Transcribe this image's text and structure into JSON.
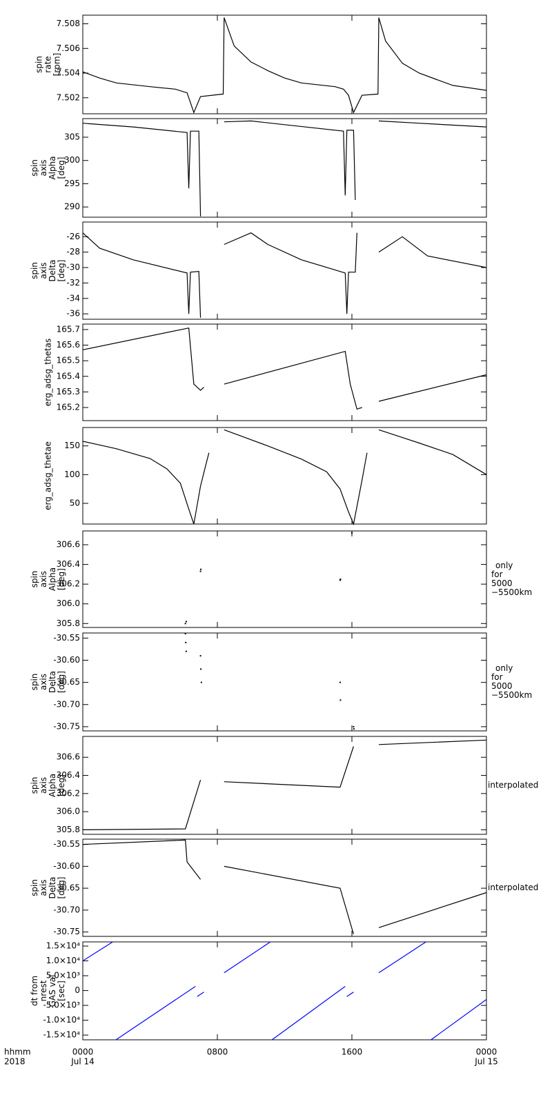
{
  "chart_data": [
    {
      "type": "line",
      "ylabel": [
        "spin",
        "rate",
        "[rpm]"
      ],
      "ylim": [
        7.5007,
        7.5087
      ],
      "yticks": [
        7.502,
        7.504,
        7.506,
        7.508
      ],
      "color": "#000000",
      "x": [
        0,
        1,
        2,
        4,
        5.5,
        6.2,
        6.6,
        7.0,
        8.35,
        8.4,
        9,
        10,
        11,
        12,
        13,
        15,
        15.5,
        15.8,
        16.1,
        16.6,
        17.55,
        17.6,
        18,
        19,
        20,
        21,
        22,
        24
      ],
      "values": [
        7.5041,
        7.5036,
        7.5032,
        7.5029,
        7.5027,
        7.5024,
        7.5008,
        7.5021,
        7.5023,
        7.5085,
        7.5062,
        7.5049,
        7.5042,
        7.5036,
        7.5032,
        7.5029,
        7.5027,
        7.5022,
        7.5008,
        7.5022,
        7.5023,
        7.5085,
        7.5066,
        7.5048,
        7.504,
        7.5035,
        7.503,
        7.5026
      ]
    },
    {
      "type": "line",
      "ylabel": [
        "spin",
        "axis",
        "Alpha",
        "[deg]"
      ],
      "ylim": [
        287.8,
        309
      ],
      "yticks": [
        290,
        295,
        300,
        305
      ],
      "color": "#000000",
      "x": [
        0,
        3,
        6.2,
        6.3,
        6.4,
        6.9,
        7.0,
        7.5,
        8.4,
        10,
        12,
        15.5,
        15.6,
        15.7,
        16.1,
        16.2,
        16.5,
        17.6,
        20,
        24
      ],
      "values": [
        308,
        307.2,
        306,
        294,
        306.3,
        306.3,
        288,
        null,
        308.3,
        308.5,
        307.7,
        306.3,
        292.5,
        306.5,
        306.5,
        291.5,
        null,
        308.5,
        308,
        307.2
      ]
    },
    {
      "type": "line",
      "ylabel": [
        "spin",
        "axis",
        "Delta",
        "[deg]"
      ],
      "ylim": [
        -36.7,
        -24.1
      ],
      "yticks": [
        -36,
        -34,
        -32,
        -30,
        -28,
        -26
      ],
      "color": "#000000",
      "x": [
        0,
        1,
        3,
        6.2,
        6.3,
        6.4,
        6.9,
        7.0,
        7.5,
        8.4,
        10,
        11,
        13,
        15.6,
        15.7,
        15.8,
        16.2,
        16.3,
        16.8,
        17.6,
        19,
        20.5,
        24
      ],
      "values": [
        -25.5,
        -27.5,
        -29,
        -30.7,
        -36,
        -30.6,
        -30.5,
        -36.5,
        null,
        -27,
        -25.5,
        -27,
        -29,
        -30.7,
        -36,
        -30.6,
        -30.6,
        -25.5,
        null,
        -28,
        -26,
        -28.5,
        -30
      ]
    },
    {
      "type": "line",
      "ylabel": [
        "erg_adsg_thetas"
      ],
      "ylim": [
        165.116,
        165.735
      ],
      "yticks": [
        165.2,
        165.3,
        165.4,
        165.5,
        165.6,
        165.7
      ],
      "color": "#000000",
      "x": [
        0,
        6.3,
        6.6,
        7.0,
        7.2,
        7.8,
        8.4,
        15.6,
        15.9,
        16.3,
        16.6,
        17.0,
        17.6,
        24
      ],
      "values": [
        165.57,
        165.71,
        165.35,
        165.31,
        165.33,
        null,
        165.35,
        165.56,
        165.35,
        165.19,
        165.2,
        null,
        165.24,
        165.41
      ]
    },
    {
      "type": "line",
      "ylabel": [
        "erg_adsg_thetae"
      ],
      "ylim": [
        14,
        182
      ],
      "yticks": [
        50,
        100,
        150
      ],
      "color": "#000000",
      "x": [
        0,
        2,
        4,
        5,
        5.8,
        6.3,
        6.6,
        7.0,
        7.3,
        7.5,
        8.0,
        8.4,
        11,
        13,
        14.5,
        15.3,
        15.8,
        16.1,
        16.6,
        16.9,
        17.2,
        17.6,
        20,
        22,
        24
      ],
      "values": [
        158,
        145,
        128,
        110,
        85,
        40,
        14,
        80,
        115,
        138,
        null,
        178,
        150,
        127,
        105,
        75,
        35,
        14,
        90,
        138,
        null,
        178,
        155,
        135,
        100
      ]
    },
    {
      "type": "scatter",
      "ylabel": [
        "spin",
        "axis",
        "Alpha",
        "[deg]"
      ],
      "note": [
        "only",
        "for",
        "5000",
        "−5500km"
      ],
      "ylim": [
        305.76,
        306.74
      ],
      "yticks": [
        {
          "value": 305.8,
          "label": "305.8"
        },
        {
          "value": 306.0,
          "label": "306.0"
        },
        {
          "value": 306.2,
          "label": "306.2"
        },
        {
          "value": 306.4,
          "label": "306.4"
        },
        {
          "value": 306.6,
          "label": "306.6"
        }
      ],
      "color": "#000000",
      "x": [
        6.1,
        6.15,
        7.0,
        7.02,
        15.3,
        15.32,
        16.0
      ],
      "values": [
        305.8,
        305.82,
        306.33,
        306.35,
        306.24,
        306.25,
        306.72
      ]
    },
    {
      "type": "scatter",
      "ylabel": [
        "spin",
        "axis",
        "Delta",
        "[deg]"
      ],
      "note": [
        "only",
        "for",
        "5000",
        "−5500km"
      ],
      "ylim": [
        -30.7595,
        -30.5385
      ],
      "yticks": [
        -30.55,
        {
          "value": -30.6,
          "label": "-30.60"
        },
        -30.65,
        {
          "value": -30.7,
          "label": "-30.70"
        },
        -30.75
      ],
      "color": "#000000",
      "x": [
        6.1,
        6.12,
        6.15,
        7.0,
        7.02,
        7.05,
        15.3,
        15.32,
        16.1,
        16.12
      ],
      "values": [
        -30.54,
        -30.56,
        -30.58,
        -30.59,
        -30.62,
        -30.65,
        -30.65,
        -30.69,
        -30.75,
        -30.755
      ]
    },
    {
      "type": "line",
      "ylabel": [
        "spin",
        "axis",
        "Alpha",
        "[deg]"
      ],
      "note": [
        "interpolated"
      ],
      "ylim": [
        305.75,
        306.83
      ],
      "yticks": [
        {
          "value": 305.8,
          "label": "305.8"
        },
        {
          "value": 306.0,
          "label": "306.0"
        },
        {
          "value": 306.2,
          "label": "306.2"
        },
        {
          "value": 306.4,
          "label": "306.4"
        },
        {
          "value": 306.6,
          "label": "306.6"
        }
      ],
      "color": "#000000",
      "x": [
        0,
        6.1,
        7.0,
        7.5,
        8.4,
        15.3,
        16.1,
        16.8,
        17.6,
        24
      ],
      "values": [
        305.8,
        305.81,
        306.35,
        null,
        306.33,
        306.27,
        306.72,
        null,
        306.74,
        306.79
      ]
    },
    {
      "type": "line",
      "ylabel": [
        "spin",
        "axis",
        "Delta",
        "[deg]"
      ],
      "note": [
        "interpolated"
      ],
      "ylim": [
        -30.76,
        -30.538
      ],
      "yticks": [
        -30.55,
        {
          "value": -30.6,
          "label": "-30.60"
        },
        -30.65,
        {
          "value": -30.7,
          "label": "-30.70"
        },
        -30.75
      ],
      "color": "#000000",
      "x": [
        0,
        6.1,
        6.2,
        7.0,
        7.5,
        8.4,
        15.3,
        16.1,
        16.8,
        17.6,
        24
      ],
      "values": [
        -30.55,
        -30.54,
        -30.59,
        -30.63,
        null,
        -30.6,
        -30.65,
        -30.755,
        null,
        -30.74,
        -30.66
      ]
    },
    {
      "type": "line",
      "ylabel": [
        "dt from",
        "nrest",
        "GAS val",
        "[sec]"
      ],
      "ylim": [
        -16600,
        16400
      ],
      "color": "#0000ff",
      "yticks": [
        {
          "value": -15000,
          "label": "-1.5×10⁴"
        },
        {
          "value": -10000,
          "label": "-1.0×10⁴"
        },
        {
          "value": -5000,
          "label": "-5.0×10³"
        },
        0,
        {
          "value": 5000,
          "label": "5.0×10³"
        },
        {
          "value": 10000,
          "label": "1.0×10⁴"
        },
        {
          "value": 15000,
          "label": "1.5×10⁴"
        }
      ],
      "x": [
        0,
        1.78,
        1.9,
        1.97,
        6.7,
        6.75,
        6.8,
        7.2,
        7.8,
        8.4,
        11.15,
        11.2,
        11.25,
        15.6,
        15.65,
        15.7,
        16.1,
        16.8,
        17.6,
        20.4,
        20.55,
        20.7,
        24
      ],
      "values": [
        10000,
        16400,
        null,
        -16600,
        1400,
        null,
        -2000,
        -500,
        null,
        6000,
        16400,
        null,
        -16600,
        1400,
        null,
        -2000,
        -500,
        null,
        6000,
        16400,
        null,
        -16600,
        -3000
      ],
      "xlim": [
        0,
        24
      ],
      "xticks": [
        {
          "value": 0,
          "label": "0000"
        },
        {
          "value": 8,
          "label": "0800"
        },
        {
          "value": 16,
          "label": "1600"
        },
        {
          "value": 24,
          "label": "0000"
        }
      ],
      "xtick_dates": [
        "Jul 14",
        null,
        null,
        "Jul 15"
      ],
      "xlabel": [
        "hhmm",
        "2018"
      ]
    }
  ]
}
